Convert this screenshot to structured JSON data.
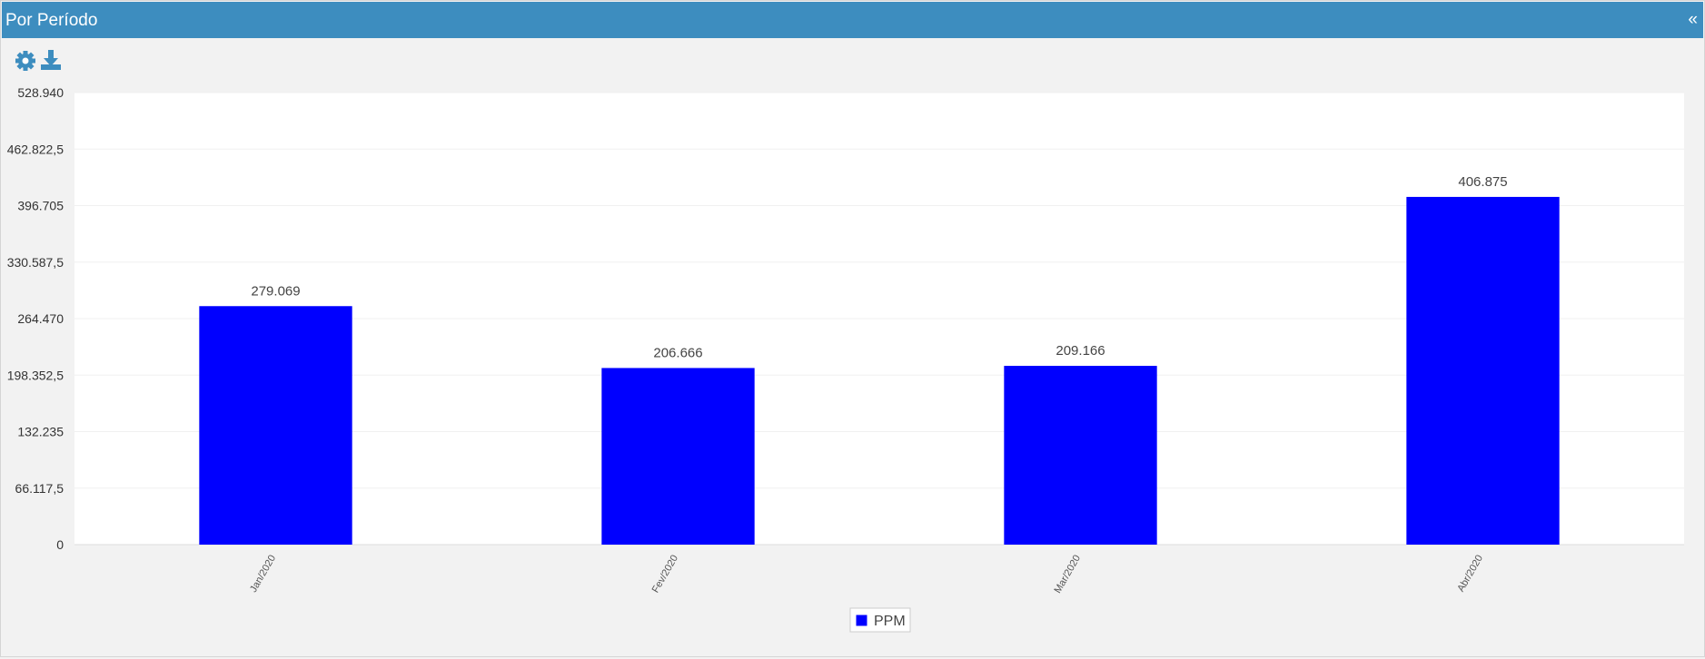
{
  "header": {
    "title": "Por Período",
    "collapse": "«"
  },
  "chart_data": {
    "type": "bar",
    "categories": [
      "Jan/2020",
      "Fev/2020",
      "Mar/2020",
      "Abr/2020"
    ],
    "series": [
      {
        "name": "PPM",
        "color": "#0000ff",
        "values": [
          279069,
          206666,
          209166,
          406875
        ],
        "value_labels": [
          "279.069",
          "206.666",
          "209.166",
          "406.875"
        ]
      }
    ],
    "ylim": [
      0,
      528940
    ],
    "yticks": [
      0,
      {
        "value": 66117.5,
        "label": "66.117,5"
      },
      {
        "value": 132235,
        "label": "132.235"
      },
      {
        "value": 198352.5,
        "label": "198.352,5"
      },
      {
        "value": 264470,
        "label": "264.470"
      },
      {
        "value": 330587.5,
        "label": "330.587,5"
      },
      {
        "value": 396705,
        "label": "396.705"
      },
      {
        "value": 462822.5,
        "label": "462.822,5"
      },
      {
        "value": 528940,
        "label": "528.940"
      }
    ],
    "grid": true,
    "legend": "bottom"
  }
}
